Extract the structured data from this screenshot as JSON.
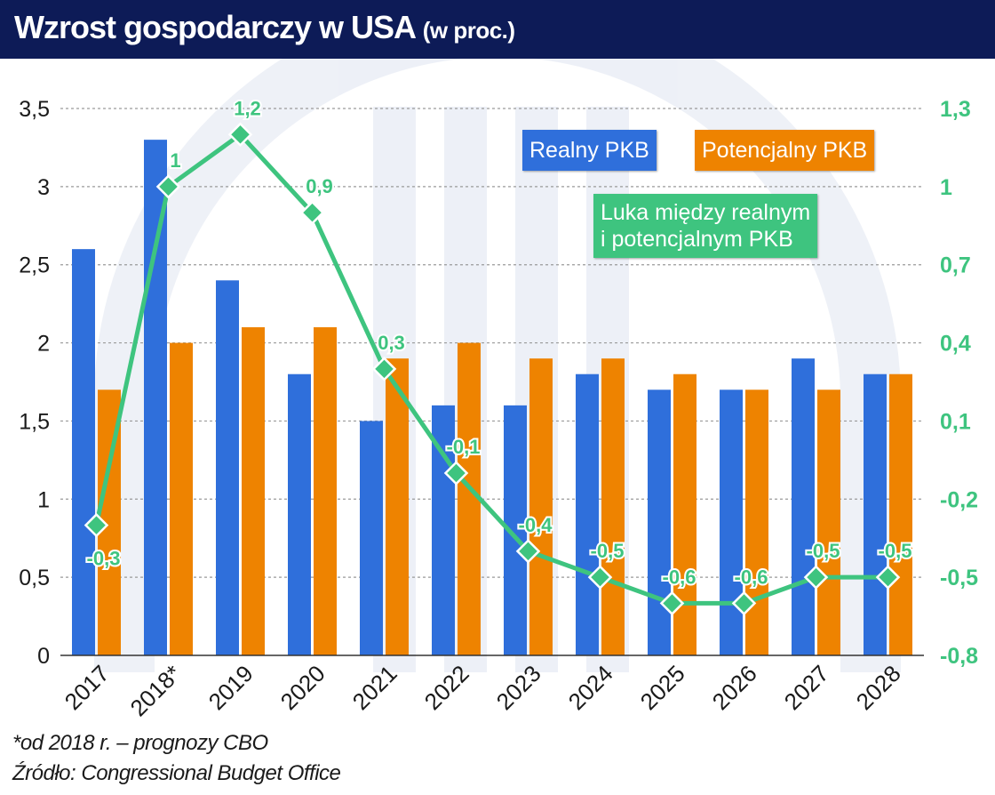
{
  "header": {
    "title": "Wzrost gospodarczy w USA",
    "subtitle": "(w proc.)",
    "background": "#0d1b57"
  },
  "footnotes": {
    "note": "*od 2018 r. – prognozy CBO",
    "source": "Źródło: Congressional Budget Office"
  },
  "legend": {
    "real": "Realny PKB",
    "potential": "Potencjalny PKB",
    "gap_line1": "Luka między realnym",
    "gap_line2": "i potencjalnym PKB"
  },
  "chart_data": {
    "type": "bar",
    "categories": [
      "2017",
      "2018*",
      "2019",
      "2020",
      "2021",
      "2022",
      "2023",
      "2024",
      "2025",
      "2026",
      "2027",
      "2028"
    ],
    "series": [
      {
        "name": "Realny PKB",
        "type": "bar",
        "axis": "left",
        "color": "#2f6fdb",
        "values": [
          2.6,
          3.3,
          2.4,
          1.8,
          1.5,
          1.6,
          1.6,
          1.8,
          1.7,
          1.7,
          1.9,
          1.8
        ]
      },
      {
        "name": "Potencjalny PKB",
        "type": "bar",
        "axis": "left",
        "color": "#ee8300",
        "values": [
          1.7,
          2.0,
          2.1,
          2.1,
          1.9,
          2.0,
          1.9,
          1.9,
          1.8,
          1.7,
          1.7,
          1.8
        ]
      },
      {
        "name": "Luka między realnym i potencjalnym PKB",
        "type": "line",
        "axis": "right",
        "color": "#3ec47f",
        "values": [
          -0.3,
          1.0,
          1.2,
          0.9,
          0.3,
          -0.1,
          -0.4,
          -0.5,
          -0.6,
          -0.6,
          -0.5,
          -0.5
        ],
        "labels": [
          "-0,3",
          "1",
          "1,2",
          "0,9",
          "0,3",
          "-0,1",
          "-0,4",
          "-0,5",
          "-0,6",
          "-0,6",
          "-0,5",
          "-0,5"
        ]
      }
    ],
    "y_left": {
      "min": 0,
      "max": 3.5,
      "ticks": [
        0,
        0.5,
        1,
        1.5,
        2,
        2.5,
        3,
        3.5
      ],
      "tick_labels": [
        "0",
        "0,5",
        "1",
        "1,5",
        "2",
        "2,5",
        "3",
        "3,5"
      ]
    },
    "y_right": {
      "min": -0.8,
      "max": 1.3,
      "ticks": [
        -0.8,
        -0.5,
        -0.2,
        0.1,
        0.4,
        0.7,
        1.0,
        1.3
      ],
      "tick_labels": [
        "-0,8",
        "-0,5",
        "-0,2",
        "0,1",
        "0,4",
        "0,7",
        "1",
        "1,3"
      ],
      "color": "#3ec47f"
    },
    "grid": "horizontal dashed"
  }
}
